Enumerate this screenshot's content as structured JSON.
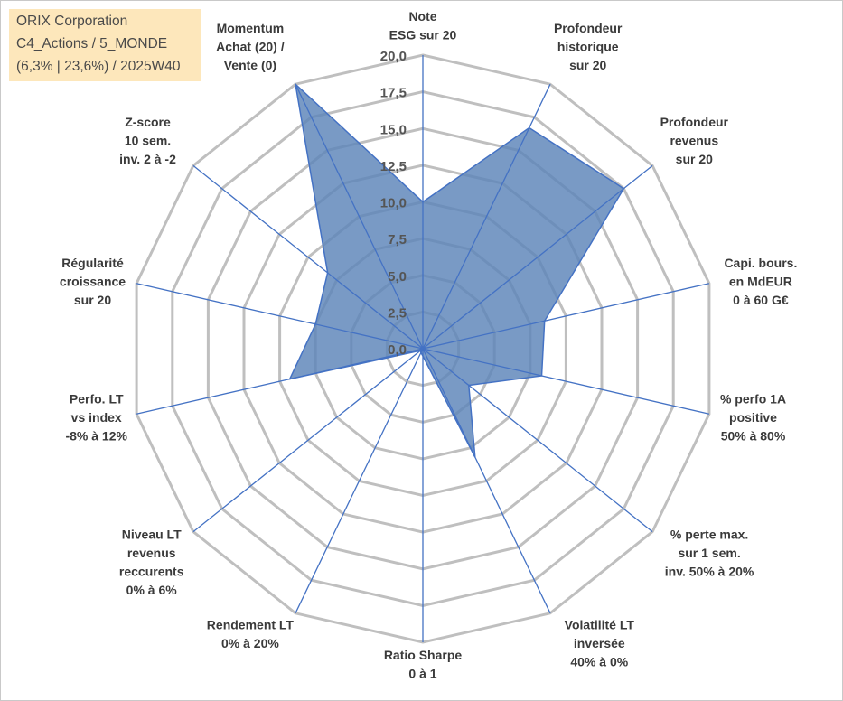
{
  "info": {
    "company": "ORIX Corporation",
    "category": "C4_Actions / 5_MONDE",
    "details": "(6,3% | 23,6%) / 2025W40"
  },
  "chart_data": {
    "type": "radar",
    "title": "",
    "rmax": 20,
    "grid_rings": 8,
    "ticks": [
      "0,0",
      "2,5",
      "5,0",
      "7,5",
      "10,0",
      "12,5",
      "15,0",
      "17,5",
      "20,0"
    ],
    "axes": [
      {
        "label": [
          "Note",
          "ESG sur 20"
        ],
        "value": 10.0
      },
      {
        "label": [
          "Profondeur",
          "historique",
          "sur 20"
        ],
        "value": 16.7
      },
      {
        "label": [
          "Profondeur",
          "revenus",
          "sur 20"
        ],
        "value": 17.5
      },
      {
        "label": [
          "Capi. bours.",
          "en MdEUR",
          "0 à 60 G€"
        ],
        "value": 8.5
      },
      {
        "label": [
          "% perfo 1A",
          "positive",
          "50% à 80%"
        ],
        "value": 8.3
      },
      {
        "label": [
          "% perte max.",
          "sur 1 sem.",
          "inv. 50% à 20%"
        ],
        "value": 4.0
      },
      {
        "label": [
          "Volatilité LT",
          "inversée",
          "40% à 0%"
        ],
        "value": 8.2
      },
      {
        "label": [
          "Ratio Sharpe",
          "0 à 1"
        ],
        "value": 0.5
      },
      {
        "label": [
          "Rendement LT",
          "0% à 20%"
        ],
        "value": 0.3
      },
      {
        "label": [
          "Niveau LT",
          "revenus",
          "reccurents",
          "0% à 6%"
        ],
        "value": 0.2
      },
      {
        "label": [
          "Perfo. LT",
          "vs index",
          "-8% à 12%"
        ],
        "value": 9.3
      },
      {
        "label": [
          "Régularité",
          "croissance",
          "sur 20"
        ],
        "value": 7.5
      },
      {
        "label": [
          "Z-score",
          "10 sem.",
          "inv. 2 à -2"
        ],
        "value": 8.3
      },
      {
        "label": [
          "Momentum",
          "Achat (20) /",
          "Vente (0)"
        ],
        "value": 20.0
      }
    ],
    "colors": {
      "fill": "#5b84b8",
      "stroke": "#4472c4",
      "grid": "#bfbfbf",
      "spoke": "#4472c4"
    }
  }
}
